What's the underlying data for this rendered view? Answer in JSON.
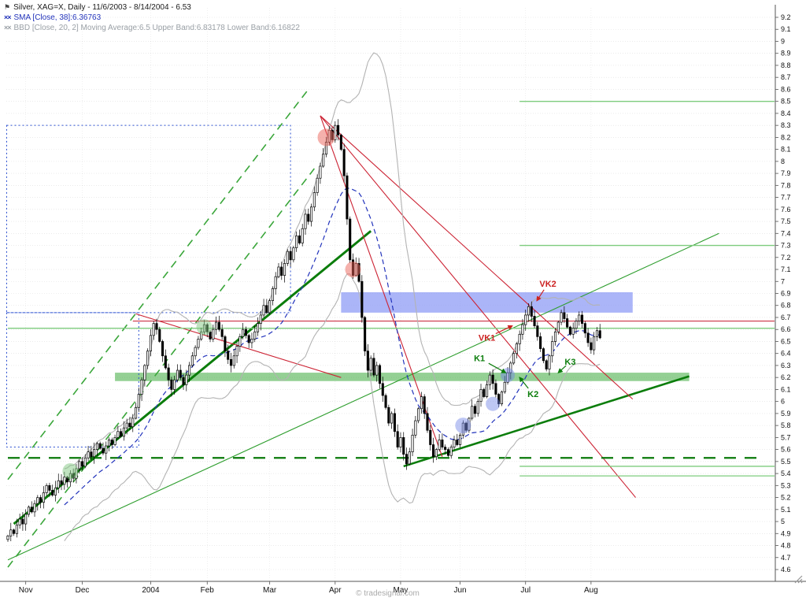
{
  "header": {
    "instrument_icon_glyph": "⚑",
    "indicator_icon_glyph": "××",
    "instrument_line": "Silver, XAG=X, Daily - 11/6/2003 - 8/14/2004 - 6.53",
    "sma_line": "SMA [Close, 38]:6.36763",
    "bbd_line": "BBD [Close, 20, 2] Moving Average:6.5 Upper Band:6.83178 Lower Band:6.16822",
    "sma_color": "#2233bb",
    "bbd_color": "#9aa0a6"
  },
  "watermark": "© tradesignal.com",
  "chart_data": {
    "type": "candlestick",
    "title": "Silver, XAG=X, Daily",
    "date_range": "11/6/2003 - 8/14/2004",
    "last_price": 6.53,
    "grid": true,
    "y_axis": {
      "min": 4.6,
      "max": 9.2,
      "step": 0.1
    },
    "x_labels": [
      {
        "label": "Nov",
        "bar": 6
      },
      {
        "label": "Dec",
        "bar": 25
      },
      {
        "label": "2004",
        "bar": 48
      },
      {
        "label": "Feb",
        "bar": 67
      },
      {
        "label": "Mar",
        "bar": 88
      },
      {
        "label": "Apr",
        "bar": 110
      },
      {
        "label": "May",
        "bar": 132
      },
      {
        "label": "Jun",
        "bar": 152
      },
      {
        "label": "Jul",
        "bar": 174
      },
      {
        "label": "Aug",
        "bar": 196
      }
    ],
    "indicators": {
      "sma": {
        "period": 38,
        "value": 6.36763,
        "color": "#2233bb"
      },
      "bollinger": {
        "period": 20,
        "stddev": 2,
        "ma": 6.5,
        "upper": 6.83178,
        "lower": 6.16822,
        "color": "#b3b3b3"
      }
    },
    "first_open": 4.85,
    "closes": [
      4.88,
      4.93,
      4.9,
      4.97,
      5.02,
      4.98,
      5.06,
      5.12,
      5.08,
      5.15,
      5.2,
      5.16,
      5.24,
      5.3,
      5.26,
      5.22,
      5.28,
      5.34,
      5.31,
      5.37,
      5.33,
      5.4,
      5.36,
      5.44,
      5.5,
      5.46,
      5.53,
      5.58,
      5.54,
      5.6,
      5.65,
      5.61,
      5.57,
      5.63,
      5.68,
      5.64,
      5.7,
      5.75,
      5.71,
      5.78,
      5.82,
      5.79,
      5.86,
      5.95,
      6.06,
      6.18,
      6.3,
      6.42,
      6.55,
      6.65,
      6.6,
      6.5,
      6.38,
      6.28,
      6.18,
      6.1,
      6.18,
      6.26,
      6.2,
      6.14,
      6.22,
      6.3,
      6.38,
      6.45,
      6.52,
      6.58,
      6.64,
      6.58,
      6.52,
      6.6,
      6.66,
      6.6,
      6.54,
      6.42,
      6.35,
      6.3,
      6.38,
      6.46,
      6.54,
      6.6,
      6.55,
      6.49,
      6.52,
      6.58,
      6.65,
      6.72,
      6.8,
      6.74,
      6.84,
      6.94,
      7.04,
      7.12,
      7.05,
      7.15,
      7.25,
      7.18,
      7.28,
      7.38,
      7.32,
      7.44,
      7.56,
      7.5,
      7.62,
      7.74,
      7.86,
      7.96,
      8.06,
      8.16,
      8.26,
      8.18,
      8.3,
      8.22,
      8.1,
      7.88,
      7.52,
      7.18,
      7.05,
      7.15,
      7.0,
      6.7,
      6.42,
      6.26,
      6.36,
      6.22,
      6.3,
      6.15,
      6.05,
      5.95,
      5.82,
      5.9,
      5.75,
      5.62,
      5.7,
      5.56,
      5.48,
      5.58,
      5.72,
      5.84,
      5.94,
      6.04,
      5.9,
      5.76,
      5.64,
      5.54,
      5.6,
      5.68,
      5.62,
      5.6,
      5.55,
      5.62,
      5.68,
      5.64,
      5.72,
      5.82,
      5.76,
      5.86,
      5.96,
      5.9,
      6.0,
      6.1,
      6.04,
      6.14,
      6.22,
      6.15,
      6.06,
      5.98,
      6.08,
      6.16,
      6.24,
      6.32,
      6.4,
      6.48,
      6.56,
      6.64,
      6.72,
      6.79,
      6.71,
      6.63,
      6.54,
      6.44,
      6.34,
      6.27,
      6.38,
      6.5,
      6.58,
      6.66,
      6.74,
      6.69,
      6.62,
      6.56,
      6.61,
      6.67,
      6.72,
      6.65,
      6.57,
      6.49,
      6.43,
      6.54,
      6.59,
      6.53
    ],
    "bands": [
      {
        "name": "resistance-zone",
        "v1": 6.74,
        "v2": 6.91,
        "b1": 112,
        "b2": 210,
        "fill": "rgba(135,150,245,0.70)"
      },
      {
        "name": "support-zone",
        "v1": 6.17,
        "v2": 6.24,
        "b1": 36,
        "b2": 229,
        "fill": "rgba(60,170,60,0.55)"
      }
    ],
    "dotted_rects": [
      {
        "name": "projection-box-upper",
        "v1": 6.74,
        "v2": 8.3,
        "b1": -0.4,
        "b2": 95,
        "color": "#2b4fd0"
      },
      {
        "name": "projection-box-lower",
        "v1": 5.62,
        "v2": 6.74,
        "b1": -0.4,
        "b2": 44,
        "color": "#2b4fd0"
      }
    ],
    "hlines": [
      {
        "name": "resistance-line",
        "v": 6.67,
        "b1": 42,
        "b2": 258,
        "color": "#cc3344",
        "w": 1.2
      },
      {
        "name": "target-8.5",
        "v": 8.5,
        "b1": 172,
        "b2": 258,
        "color": "#7ecc7e",
        "w": 1.3
      },
      {
        "name": "target-7.3",
        "v": 7.3,
        "b1": 172,
        "b2": 258,
        "color": "#7ecc7e",
        "w": 1.3
      },
      {
        "name": "level-6.61",
        "v": 6.61,
        "b1": 0,
        "b2": 258,
        "color": "#7ecc7e",
        "w": 1.3
      },
      {
        "name": "target-5.46",
        "v": 5.46,
        "b1": 172,
        "b2": 258,
        "color": "#7ecc7e",
        "w": 1.3
      },
      {
        "name": "target-5.38",
        "v": 5.38,
        "b1": 172,
        "b2": 258,
        "color": "#7ecc7e",
        "w": 1.3
      },
      {
        "name": "support-dashed",
        "v": 5.53,
        "b1": 0,
        "b2": 252,
        "color": "#0a7a0a",
        "w": 2.2,
        "dash": "15,11"
      }
    ],
    "trendlines": [
      {
        "name": "uptrend-major",
        "b1": 2,
        "v1": 4.98,
        "b2": 122,
        "v2": 7.42,
        "color": "#0b7d0b",
        "w": 3
      },
      {
        "name": "triangle-support",
        "b1": 133,
        "v1": 5.46,
        "b2": 229,
        "v2": 6.21,
        "color": "#0b7d0b",
        "w": 2.6
      },
      {
        "name": "channel-upper-dashed",
        "b1": 0,
        "v1": 5.35,
        "b2": 101,
        "v2": 8.6,
        "color": "#3aa63a",
        "w": 1.6,
        "dash": "10,7"
      },
      {
        "name": "channel-lower-dashed",
        "b1": 0,
        "v1": 4.62,
        "b2": 103,
        "v2": 7.94,
        "color": "#3aa63a",
        "w": 1.6,
        "dash": "10,7"
      },
      {
        "name": "longterm-uptrend",
        "b1": 0,
        "v1": 4.68,
        "b2": 239,
        "v2": 7.4,
        "color": "#2e9e2e",
        "w": 1.1
      },
      {
        "name": "downtrend-1",
        "b1": 105,
        "v1": 8.38,
        "b2": 210,
        "v2": 6.02,
        "color": "#cc2233",
        "w": 1.1
      },
      {
        "name": "downtrend-2",
        "b1": 105,
        "v1": 8.38,
        "b2": 211,
        "v2": 5.2,
        "color": "#cc2233",
        "w": 1.1
      },
      {
        "name": "downtrend-3",
        "b1": 105,
        "v1": 8.38,
        "b2": 146,
        "v2": 5.54,
        "color": "#cc2233",
        "w": 1.1
      },
      {
        "name": "resistance-minor",
        "b1": 43,
        "v1": 6.73,
        "b2": 112,
        "v2": 6.2,
        "color": "#cc2233",
        "w": 1.1
      }
    ],
    "circles": [
      {
        "name": "highlight-green-1",
        "bar": 21,
        "v": 5.42,
        "r": 10,
        "fill": "rgba(130,200,130,0.50)"
      },
      {
        "name": "highlight-green-2",
        "bar": 66,
        "v": 6.62,
        "r": 10,
        "fill": "rgba(130,200,130,0.50)"
      },
      {
        "name": "highlight-red-1",
        "bar": 107,
        "v": 8.2,
        "r": 11,
        "fill": "rgba(235,100,90,0.50)"
      },
      {
        "name": "highlight-red-2",
        "bar": 116,
        "v": 7.1,
        "r": 10,
        "fill": "rgba(235,100,90,0.50)"
      },
      {
        "name": "highlight-blue-1",
        "bar": 153,
        "v": 5.8,
        "r": 10,
        "fill": "rgba(110,130,230,0.45)"
      },
      {
        "name": "highlight-blue-2",
        "bar": 163,
        "v": 5.98,
        "r": 9,
        "fill": "rgba(110,130,230,0.45)"
      },
      {
        "name": "highlight-blue-3",
        "bar": 168,
        "v": 6.22,
        "r": 9,
        "fill": "rgba(110,130,230,0.45)"
      }
    ],
    "annotations": [
      {
        "label": "VK2",
        "color": "#cc2222",
        "text_bar": 181.5,
        "text_v": 6.98,
        "tip_bar": 177.8,
        "tip_v": 6.84
      },
      {
        "label": "VK1",
        "color": "#cc2222",
        "text_bar": 161,
        "text_v": 6.53,
        "tip_bar": 169.5,
        "tip_v": 6.63
      },
      {
        "label": "K1",
        "color": "#0b7d0b",
        "text_bar": 158.5,
        "text_v": 6.36,
        "tip_bar": 167.3,
        "tip_v": 6.24
      },
      {
        "label": "K2",
        "color": "#0b7d0b",
        "text_bar": 176.5,
        "text_v": 6.06,
        "tip_bar": 172,
        "tip_v": 6.2
      },
      {
        "label": "K3",
        "color": "#0b7d0b",
        "text_bar": 189,
        "text_v": 6.33,
        "tip_bar": 185,
        "tip_v": 6.24
      }
    ]
  }
}
